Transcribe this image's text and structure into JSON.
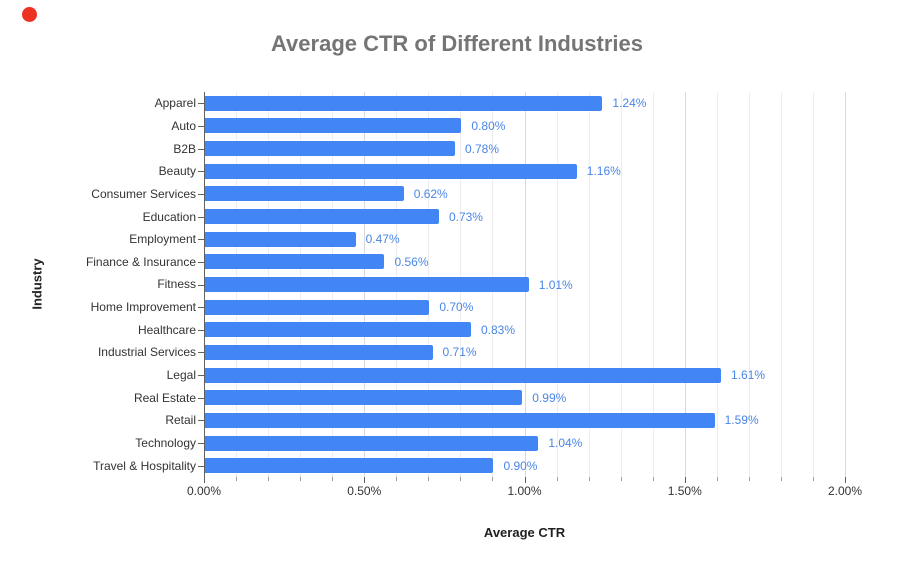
{
  "indicator": {
    "color": "#eb3223"
  },
  "chart_data": {
    "type": "bar",
    "orientation": "horizontal",
    "title": "Average CTR of Different Industries",
    "title_color": "#757575",
    "xlabel": "Average CTR",
    "ylabel": "Industry",
    "categories": [
      "Apparel",
      "Auto",
      "B2B",
      "Beauty",
      "Consumer Services",
      "Education",
      "Employment",
      "Finance & Insurance",
      "Fitness",
      "Home Improvement",
      "Healthcare",
      "Industrial Services",
      "Legal",
      "Real Estate",
      "Retail",
      "Technology",
      "Travel & Hospitality"
    ],
    "values": [
      1.24,
      0.8,
      0.78,
      1.16,
      0.62,
      0.73,
      0.47,
      0.56,
      1.01,
      0.7,
      0.83,
      0.71,
      1.61,
      0.99,
      1.59,
      1.04,
      0.9
    ],
    "value_labels": [
      "1.24%",
      "0.80%",
      "0.78%",
      "1.16%",
      "0.62%",
      "0.73%",
      "0.47%",
      "0.56%",
      "1.01%",
      "0.70%",
      "0.83%",
      "0.71%",
      "1.61%",
      "0.99%",
      "1.59%",
      "1.04%",
      "0.90%"
    ],
    "xlim": [
      0,
      2
    ],
    "x_tick_values": [
      0,
      0.5,
      1.0,
      1.5,
      2.0
    ],
    "x_tick_labels": [
      "0.00%",
      "0.50%",
      "1.00%",
      "1.50%",
      "2.00%"
    ],
    "minor_grid_step": 0.1,
    "grid": true,
    "legend": "none",
    "bar_color": "#4285f4",
    "data_label_color": "#4a86e8"
  }
}
